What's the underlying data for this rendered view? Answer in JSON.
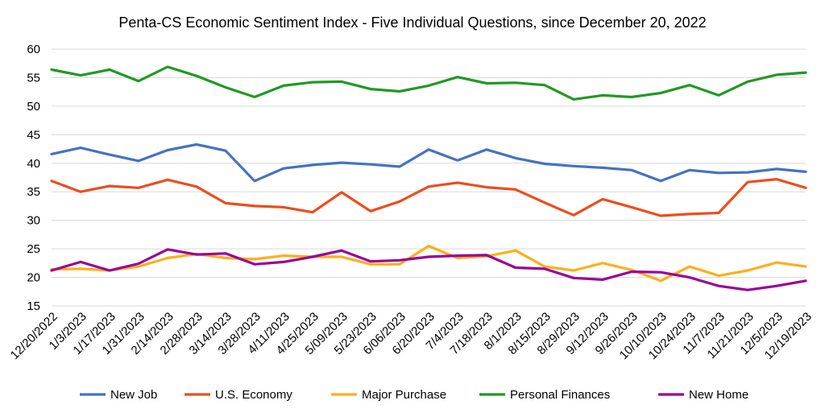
{
  "chart_data": {
    "type": "line",
    "title": "Penta-CS Economic Sentiment Index - Five Individual Questions, since December 20, 2022",
    "xlabel": "",
    "ylabel": "",
    "ylim": [
      15,
      60
    ],
    "yticks": [
      15,
      20,
      25,
      30,
      35,
      40,
      45,
      50,
      55,
      60
    ],
    "grid": "horizontal",
    "legend_position": "bottom",
    "categories": [
      "12/20/2022",
      "1/3/2023",
      "1/17/2023",
      "1/31/2023",
      "2/14/2023",
      "2/28/2023",
      "3/14/2023",
      "3/28/2023",
      "4/11/2023",
      "4/25/2023",
      "5/09/2023",
      "5/23/2023",
      "6/06/2023",
      "6/20/2023",
      "7/4/2023",
      "7/18/2023",
      "8/1/2023",
      "8/15/2023",
      "8/29/2023",
      "9/12/2023",
      "9/26/2023",
      "10/10/2023",
      "10/24/2023",
      "11/7/2023",
      "11/21/2023",
      "12/5/2023",
      "12/19/2023"
    ],
    "series": [
      {
        "name": "New Job",
        "color": "#4472c4",
        "values": [
          41.6,
          42.7,
          41.5,
          40.4,
          42.3,
          43.3,
          42.2,
          36.9,
          39.1,
          39.7,
          40.1,
          39.8,
          39.4,
          42.4,
          40.5,
          42.4,
          40.9,
          39.9,
          39.5,
          39.2,
          38.8,
          36.9,
          38.8,
          38.3,
          38.4,
          39.0,
          38.5
        ]
      },
      {
        "name": "U.S. Economy",
        "color": "#ed4d1c",
        "values": [
          36.9,
          35.0,
          36.0,
          35.7,
          37.1,
          35.9,
          33.0,
          32.5,
          32.3,
          31.4,
          34.9,
          31.6,
          33.3,
          35.9,
          36.6,
          35.8,
          35.4,
          33.1,
          30.9,
          33.7,
          32.3,
          30.8,
          31.1,
          31.3,
          36.7,
          37.2,
          35.7
        ]
      },
      {
        "name": "Major Purchase",
        "color": "#ffae1a",
        "values": [
          21.4,
          21.5,
          21.2,
          21.9,
          23.4,
          24.1,
          23.4,
          23.2,
          23.8,
          23.6,
          23.6,
          22.3,
          22.3,
          25.5,
          23.4,
          23.7,
          24.7,
          21.9,
          21.2,
          22.5,
          21.3,
          19.4,
          21.9,
          20.3,
          21.2,
          22.6,
          21.9
        ]
      },
      {
        "name": "Personal Finances",
        "color": "#1f9a22",
        "values": [
          56.4,
          55.4,
          56.4,
          54.4,
          56.9,
          55.3,
          53.3,
          51.6,
          53.6,
          54.2,
          54.3,
          53.0,
          52.6,
          53.6,
          55.1,
          54.0,
          54.1,
          53.7,
          51.2,
          51.9,
          51.6,
          52.3,
          53.7,
          51.9,
          54.3,
          55.5,
          55.9
        ]
      },
      {
        "name": "New Home",
        "color": "#990099",
        "values": [
          21.2,
          22.7,
          21.2,
          22.4,
          24.9,
          24.0,
          24.2,
          22.3,
          22.7,
          23.6,
          24.7,
          22.8,
          23.0,
          23.6,
          23.8,
          23.9,
          21.7,
          21.5,
          19.9,
          19.6,
          21.0,
          20.9,
          20.0,
          18.5,
          17.8,
          18.5,
          19.4
        ]
      }
    ]
  }
}
